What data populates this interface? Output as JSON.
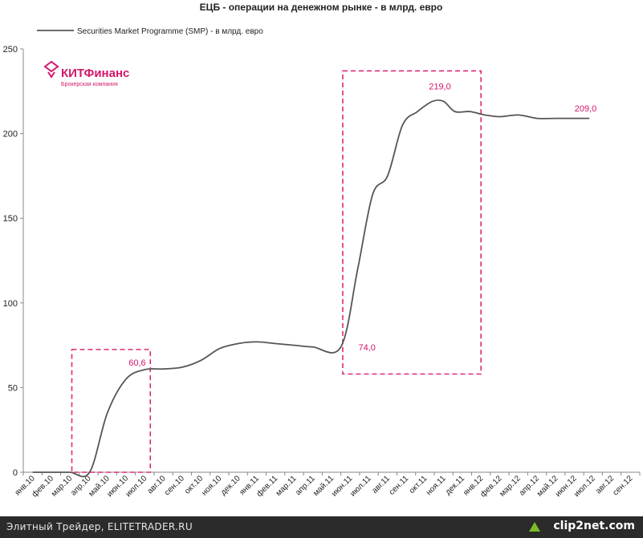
{
  "chart_data": {
    "type": "line",
    "title": "ЕЦБ - операции на денежном рынке - в млрд. евро",
    "legend": "Securities Market Programme (SMP) - в млрд. евро",
    "legend_position": "top-left",
    "ylim": [
      0,
      250
    ],
    "yticks": [
      "0",
      "50",
      "100",
      "150",
      "200",
      "250"
    ],
    "ytick_values": [
      0,
      50,
      100,
      150,
      200,
      250
    ],
    "categories": [
      "янв.10",
      "фев.10",
      "мар.10",
      "апр.10",
      "май.10",
      "июн.10",
      "июл.10",
      "авг.10",
      "сен.10",
      "окт.10",
      "ноя.10",
      "дек.10",
      "янв.11",
      "фев.11",
      "мар.11",
      "апр.11",
      "май.11",
      "июн.11",
      "июл.11",
      "авг.11",
      "сен.11",
      "окт.11",
      "ноя.11",
      "дек.11",
      "янв.12",
      "фев.12",
      "мар.12",
      "апр.12",
      "май.12",
      "июн.12",
      "июл.12",
      "авг.12",
      "сен.12"
    ],
    "series": [
      {
        "name": "Securities Market Programme (SMP) - в млрд. евро",
        "color": "#555555",
        "values": [
          0,
          0,
          0,
          0,
          35,
          55,
          60.6,
          61,
          62,
          66,
          73,
          76,
          77,
          76,
          75,
          74,
          74,
          120,
          164,
          175,
          205,
          213,
          219,
          219,
          213,
          213,
          211,
          210,
          211,
          209,
          209,
          209,
          209
        ],
        "x": [
          0.0,
          1.0,
          2.0,
          3.05,
          4.0,
          5.0,
          6.0,
          7.0,
          8.0,
          9.0,
          10.0,
          11.0,
          12.0,
          13.0,
          14.0,
          15.0,
          16.5,
          17.4,
          18.2,
          19.0,
          19.8,
          20.6,
          21.4,
          22.0,
          22.6,
          23.4,
          24.2,
          25.0,
          26.0,
          27.0,
          28.0,
          29.0,
          29.8
        ]
      }
    ],
    "annotations": [
      {
        "text": "60,6",
        "x": 5.6,
        "y": 63
      },
      {
        "text": "74,0",
        "x": 17.9,
        "y": 72
      },
      {
        "text": "219,0",
        "x": 21.8,
        "y": 226
      },
      {
        "text": "209,0",
        "x": 29.6,
        "y": 213
      }
    ],
    "highlight_boxes": [
      {
        "x0": 2.6,
        "x1": 6.8,
        "y0": 0,
        "y1": 72.5
      },
      {
        "x0": 17.1,
        "x1": 24.5,
        "y0": 58,
        "y1": 237
      }
    ],
    "colors": {
      "axis": "#888888",
      "line": "#555555",
      "highlight": "#e0287a"
    }
  },
  "logo": {
    "name": "КИТФинанс",
    "subtitle": "Брокерская компания",
    "color": "#d4176b"
  },
  "footer": {
    "text": "Элитный Трейдер, ELITETRADER.RU",
    "brand": "clip2net.com"
  }
}
